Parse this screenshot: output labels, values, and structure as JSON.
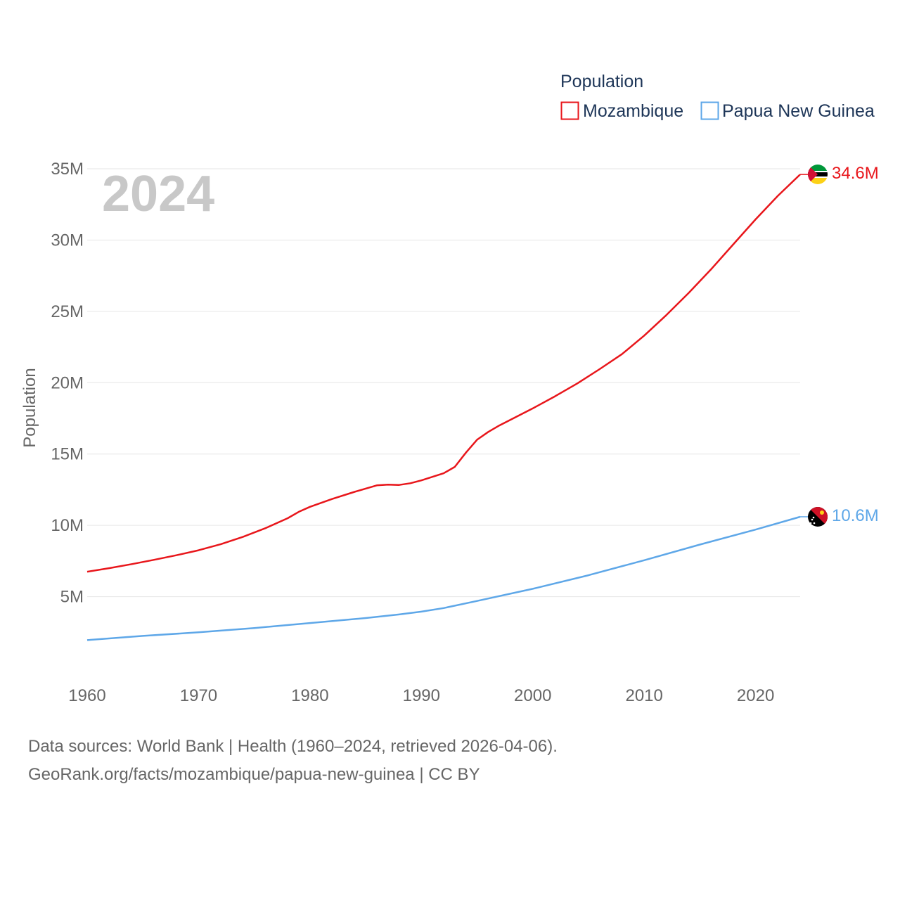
{
  "chart_data": {
    "type": "line",
    "year_label": "2024",
    "ylabel": "Population",
    "legend_title": "Population",
    "xlim": [
      1960,
      2024
    ],
    "ylim": [
      0,
      35000000
    ],
    "x_ticks": [
      1960,
      1970,
      1980,
      1990,
      2000,
      2010,
      2020
    ],
    "y_ticks": [
      {
        "value": 5000000,
        "label": "5M"
      },
      {
        "value": 10000000,
        "label": "10M"
      },
      {
        "value": 15000000,
        "label": "15M"
      },
      {
        "value": 20000000,
        "label": "20M"
      },
      {
        "value": 25000000,
        "label": "25M"
      },
      {
        "value": 30000000,
        "label": "30M"
      },
      {
        "value": 35000000,
        "label": "35M"
      }
    ],
    "series": [
      {
        "name": "Mozambique",
        "color": "#e8161b",
        "end_label": "34.6M",
        "x": [
          1960,
          1962,
          1964,
          1966,
          1968,
          1970,
          1972,
          1974,
          1976,
          1978,
          1979,
          1980,
          1982,
          1984,
          1986,
          1987,
          1988,
          1989,
          1990,
          1992,
          1993,
          1994,
          1995,
          1996,
          1997,
          1998,
          2000,
          2002,
          2004,
          2006,
          2008,
          2010,
          2012,
          2014,
          2016,
          2018,
          2020,
          2022,
          2024
        ],
        "values": [
          6750000,
          7000000,
          7280000,
          7580000,
          7900000,
          8250000,
          8680000,
          9200000,
          9800000,
          10500000,
          10950000,
          11300000,
          11850000,
          12350000,
          12800000,
          12850000,
          12830000,
          12950000,
          13150000,
          13650000,
          14100000,
          15100000,
          16000000,
          16550000,
          17000000,
          17400000,
          18200000,
          19050000,
          19950000,
          20950000,
          22000000,
          23300000,
          24750000,
          26300000,
          27950000,
          29700000,
          31450000,
          33100000,
          34600000
        ]
      },
      {
        "name": "Papua New Guinea",
        "color": "#5ea7e8",
        "end_label": "10.6M",
        "x": [
          1960,
          1965,
          1970,
          1975,
          1980,
          1985,
          1988,
          1990,
          1992,
          1995,
          2000,
          2005,
          2010,
          2015,
          2020,
          2024
        ],
        "values": [
          1950000,
          2250000,
          2500000,
          2800000,
          3150000,
          3500000,
          3750000,
          3950000,
          4200000,
          4700000,
          5550000,
          6500000,
          7550000,
          8650000,
          9700000,
          10600000
        ]
      }
    ]
  },
  "source": {
    "line1": "Data sources: World Bank | Health (1960–2024, retrieved 2026-04-06).",
    "line2": "GeoRank.org/facts/mozambique/papua-new-guinea | CC BY"
  },
  "icons": {
    "mozambique": "mozambique-flag-icon",
    "png": "papua-new-guinea-flag-icon"
  }
}
